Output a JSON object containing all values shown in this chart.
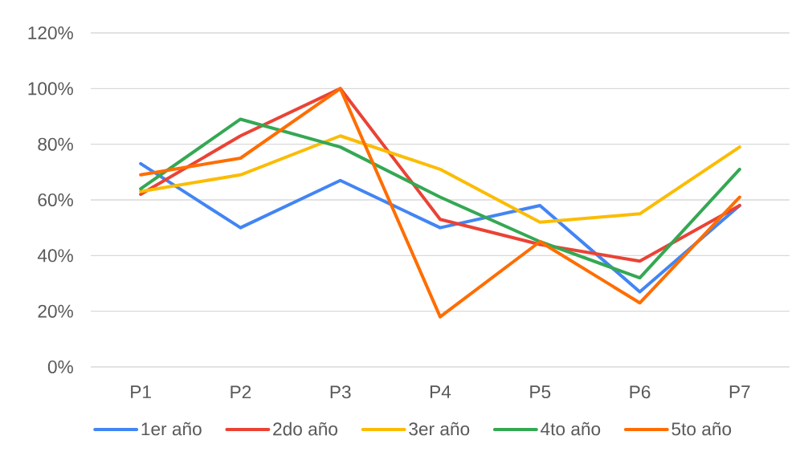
{
  "chart_data": {
    "type": "line",
    "categories": [
      "P1",
      "P2",
      "P3",
      "P4",
      "P5",
      "P6",
      "P7"
    ],
    "series": [
      {
        "name": "1er año",
        "color": "#4285f4",
        "values": [
          73,
          50,
          67,
          50,
          58,
          27,
          58
        ]
      },
      {
        "name": "2do año",
        "color": "#ea4335",
        "values": [
          62,
          83,
          100,
          53,
          44,
          38,
          58
        ]
      },
      {
        "name": "3er año",
        "color": "#fbbc04",
        "values": [
          63,
          69,
          83,
          71,
          52,
          55,
          79
        ]
      },
      {
        "name": "4to año",
        "color": "#34a853",
        "values": [
          64,
          89,
          79,
          61,
          45,
          32,
          71
        ]
      },
      {
        "name": "5to año",
        "color": "#ff6d01",
        "values": [
          69,
          75,
          100,
          18,
          45,
          23,
          61
        ]
      }
    ],
    "ylim": [
      0,
      120
    ],
    "yticks": [
      {
        "value": 0,
        "label": "0%"
      },
      {
        "value": 20,
        "label": "20%"
      },
      {
        "value": 40,
        "label": "40%"
      },
      {
        "value": 60,
        "label": "60%"
      },
      {
        "value": 80,
        "label": "80%"
      },
      {
        "value": 100,
        "label": "100%"
      },
      {
        "value": 120,
        "label": "120%"
      }
    ],
    "grid": "y",
    "legend": "bottom",
    "marker": "none",
    "line_style": "solid"
  }
}
